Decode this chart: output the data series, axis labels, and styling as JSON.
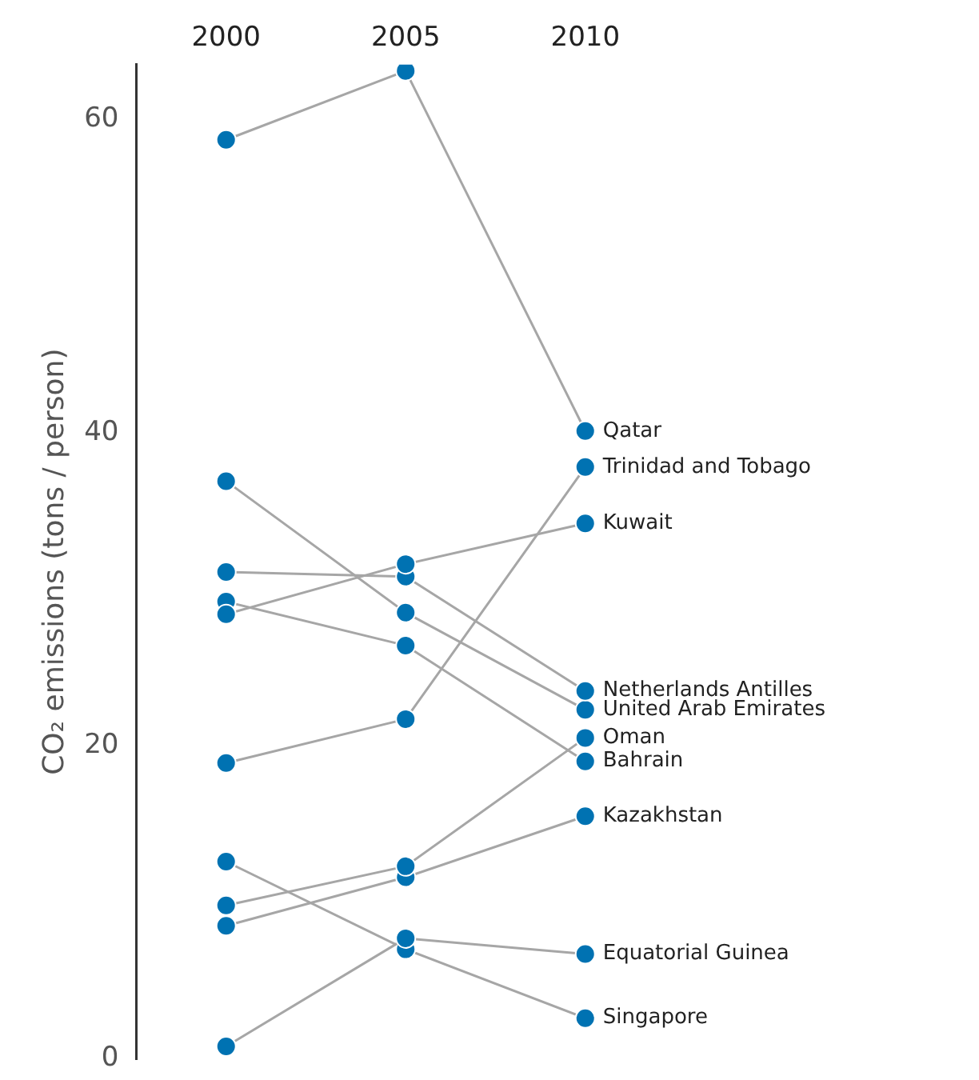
{
  "chart_data": {
    "type": "line",
    "ylabel": "CO₂ emissions (tons / person)",
    "categories": [
      "2000",
      "2005",
      "2010"
    ],
    "ylim": [
      0,
      63.5
    ],
    "yticks": [
      0,
      20,
      40,
      60
    ],
    "grid": false,
    "legend": false,
    "marker": "circle",
    "line_style": "solid",
    "series": [
      {
        "name": "Qatar",
        "color": "#0072b2",
        "values": [
          58.7,
          63.1,
          40.1
        ]
      },
      {
        "name": "Trinidad and Tobago",
        "color": "#0072b2",
        "values": [
          18.9,
          21.7,
          37.8
        ]
      },
      {
        "name": "Kuwait",
        "color": "#0072b2",
        "values": [
          28.4,
          31.6,
          34.2
        ]
      },
      {
        "name": "Netherlands Antilles",
        "color": "#0072b2",
        "values": [
          31.1,
          30.8,
          23.5
        ]
      },
      {
        "name": "United Arab Emirates",
        "color": "#0072b2",
        "values": [
          36.9,
          28.5,
          22.3
        ]
      },
      {
        "name": "Oman",
        "color": "#0072b2",
        "values": [
          9.8,
          12.3,
          20.5
        ]
      },
      {
        "name": "Bahrain",
        "color": "#0072b2",
        "values": [
          29.2,
          26.4,
          19.0
        ]
      },
      {
        "name": "Kazakhstan",
        "color": "#0072b2",
        "values": [
          8.5,
          11.6,
          15.5
        ]
      },
      {
        "name": "Equatorial Guinea",
        "color": "#0072b2",
        "values": [
          0.8,
          7.7,
          6.7
        ]
      },
      {
        "name": "Singapore",
        "color": "#0072b2",
        "values": [
          12.6,
          7.0,
          2.6
        ]
      }
    ]
  }
}
